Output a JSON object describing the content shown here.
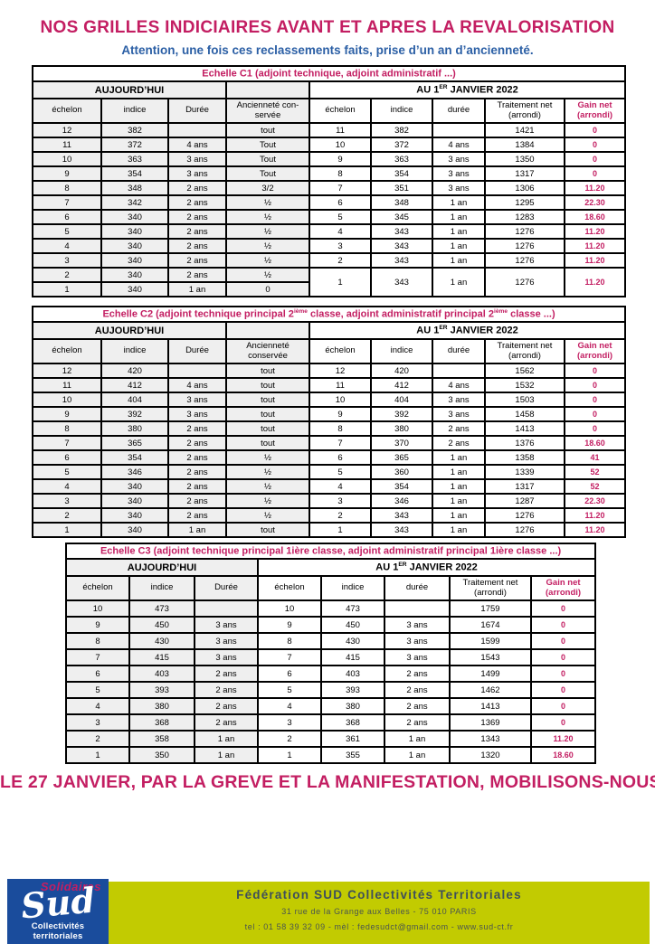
{
  "page": {
    "title": "NOS GRILLES INDICIAIRES AVANT ET APRES LA REVALORISATION",
    "subtitle": "Attention, une fois ces reclassements faits, prise d’un an d’ancienneté.",
    "headline": "LE 27 JANVIER, PAR LA GREVE ET LA MANIFESTATION, MOBILISONS-NOUS"
  },
  "colors": {
    "magenta": "#C31E62",
    "blue": "#2B5FA5",
    "olive": "#C2CB01",
    "logo-blue": "#1A4C9C",
    "grey-cell": "#EFEFEF"
  },
  "labels": {
    "today": "AUJOURD’HUI",
    "jan_prefix": "AU 1",
    "jan_sup": "ER",
    "jan_suffix": " JANVIER 2022"
  },
  "tables": [
    {
      "title": {
        "p1": "Echelle C1 (adjoint technique, adjoint administratif ...)",
        "s1": "",
        "p2": "",
        "s2": "",
        "p3": ""
      },
      "columns": [
        "échelon",
        "indice",
        "Durée",
        "Ancienneté con-servée",
        "échelon",
        "indice",
        "durée",
        "Traitement net (arrondi)",
        "Gain net (arrondi)"
      ],
      "rows": [
        {
          "left": [
            "12",
            "382",
            "",
            "tout"
          ],
          "right": [
            "11",
            "382",
            "",
            "1421",
            "0"
          ]
        },
        {
          "left": [
            "11",
            "372",
            "4 ans",
            "Tout"
          ],
          "right": [
            "10",
            "372",
            "4 ans",
            "1384",
            "0"
          ]
        },
        {
          "left": [
            "10",
            "363",
            "3 ans",
            "Tout"
          ],
          "right": [
            "9",
            "363",
            "3 ans",
            "1350",
            "0"
          ]
        },
        {
          "left": [
            "9",
            "354",
            "3 ans",
            "Tout"
          ],
          "right": [
            "8",
            "354",
            "3 ans",
            "1317",
            "0"
          ]
        },
        {
          "left": [
            "8",
            "348",
            "2 ans",
            "3/2"
          ],
          "right": [
            "7",
            "351",
            "3 ans",
            "1306",
            "11.20"
          ]
        },
        {
          "left": [
            "7",
            "342",
            "2 ans",
            "½"
          ],
          "right": [
            "6",
            "348",
            "1 an",
            "1295",
            "22.30"
          ]
        },
        {
          "left": [
            "6",
            "340",
            "2 ans",
            "½"
          ],
          "right": [
            "5",
            "345",
            "1 an",
            "1283",
            "18.60"
          ]
        },
        {
          "left": [
            "5",
            "340",
            "2 ans",
            "½"
          ],
          "right": [
            "4",
            "343",
            "1 an",
            "1276",
            "11.20"
          ]
        },
        {
          "left": [
            "4",
            "340",
            "2 ans",
            "½"
          ],
          "right": [
            "3",
            "343",
            "1 an",
            "1276",
            "11.20"
          ]
        },
        {
          "left": [
            "3",
            "340",
            "2 ans",
            "½"
          ],
          "right": [
            "2",
            "343",
            "1 an",
            "1276",
            "11.20"
          ]
        },
        {
          "left": [
            "2",
            "340",
            "2 ans",
            "½"
          ],
          "right": [
            "1",
            "343",
            "1 an",
            "1276",
            "11.20"
          ],
          "rowspan": 2
        },
        {
          "left": [
            "1",
            "340",
            "1 an",
            "0"
          ],
          "right": null
        }
      ]
    },
    {
      "title": {
        "p1": "Echelle C2 (adjoint technique principal 2",
        "s1": "ième",
        "p2": " classe, adjoint administratif principal 2",
        "s2": "ième",
        "p3": " classe ...)"
      },
      "columns": [
        "échelon",
        "indice",
        "Durée",
        "Ancienneté conservée",
        "échelon",
        "indice",
        "durée",
        "Traitement net (arrondi)",
        "Gain net (arrondi)"
      ],
      "rows": [
        {
          "left": [
            "12",
            "420",
            "",
            "tout"
          ],
          "right": [
            "12",
            "420",
            "",
            "1562",
            "0"
          ]
        },
        {
          "left": [
            "11",
            "412",
            "4 ans",
            "tout"
          ],
          "right": [
            "11",
            "412",
            "4 ans",
            "1532",
            "0"
          ]
        },
        {
          "left": [
            "10",
            "404",
            "3 ans",
            "tout"
          ],
          "right": [
            "10",
            "404",
            "3 ans",
            "1503",
            "0"
          ]
        },
        {
          "left": [
            "9",
            "392",
            "3 ans",
            "tout"
          ],
          "right": [
            "9",
            "392",
            "3 ans",
            "1458",
            "0"
          ]
        },
        {
          "left": [
            "8",
            "380",
            "2 ans",
            "tout"
          ],
          "right": [
            "8",
            "380",
            "2 ans",
            "1413",
            "0"
          ]
        },
        {
          "left": [
            "7",
            "365",
            "2 ans",
            "tout"
          ],
          "right": [
            "7",
            "370",
            "2 ans",
            "1376",
            "18.60"
          ]
        },
        {
          "left": [
            "6",
            "354",
            "2 ans",
            "½"
          ],
          "right": [
            "6",
            "365",
            "1 an",
            "1358",
            "41"
          ]
        },
        {
          "left": [
            "5",
            "346",
            "2 ans",
            "½"
          ],
          "right": [
            "5",
            "360",
            "1 an",
            "1339",
            "52"
          ]
        },
        {
          "left": [
            "4",
            "340",
            "2 ans",
            "½"
          ],
          "right": [
            "4",
            "354",
            "1 an",
            "1317",
            "52"
          ]
        },
        {
          "left": [
            "3",
            "340",
            "2 ans",
            "½"
          ],
          "right": [
            "3",
            "346",
            "1 an",
            "1287",
            "22.30"
          ]
        },
        {
          "left": [
            "2",
            "340",
            "2 ans",
            "½"
          ],
          "right": [
            "2",
            "343",
            "1 an",
            "1276",
            "11.20"
          ]
        },
        {
          "left": [
            "1",
            "340",
            "1 an",
            "tout"
          ],
          "right": [
            "1",
            "343",
            "1 an",
            "1276",
            "11.20"
          ]
        }
      ]
    },
    {
      "title": {
        "p1": "Echelle C3 (adjoint technique principal 1ière classe, adjoint administratif principal 1ière classe ...)",
        "s1": "",
        "p2": "",
        "s2": "",
        "p3": ""
      },
      "columns": [
        "échelon",
        "indice",
        "Durée",
        "échelon",
        "indice",
        "durée",
        "Traitement net (arrondi)",
        "Gain net (arrondi)"
      ],
      "rows": [
        {
          "left": [
            "10",
            "473",
            ""
          ],
          "right": [
            "10",
            "473",
            "",
            "1759",
            "0"
          ]
        },
        {
          "left": [
            "9",
            "450",
            "3 ans"
          ],
          "right": [
            "9",
            "450",
            "3 ans",
            "1674",
            "0"
          ]
        },
        {
          "left": [
            "8",
            "430",
            "3 ans"
          ],
          "right": [
            "8",
            "430",
            "3 ans",
            "1599",
            "0"
          ]
        },
        {
          "left": [
            "7",
            "415",
            "3 ans"
          ],
          "right": [
            "7",
            "415",
            "3 ans",
            "1543",
            "0"
          ]
        },
        {
          "left": [
            "6",
            "403",
            "2 ans"
          ],
          "right": [
            "6",
            "403",
            "2 ans",
            "1499",
            "0"
          ]
        },
        {
          "left": [
            "5",
            "393",
            "2 ans"
          ],
          "right": [
            "5",
            "393",
            "2 ans",
            "1462",
            "0"
          ]
        },
        {
          "left": [
            "4",
            "380",
            "2 ans"
          ],
          "right": [
            "4",
            "380",
            "2 ans",
            "1413",
            "0"
          ]
        },
        {
          "left": [
            "3",
            "368",
            "2 ans"
          ],
          "right": [
            "3",
            "368",
            "2 ans",
            "1369",
            "0"
          ]
        },
        {
          "left": [
            "2",
            "358",
            "1 an"
          ],
          "right": [
            "2",
            "361",
            "1 an",
            "1343",
            "11.20"
          ]
        },
        {
          "left": [
            "1",
            "350",
            "1 an"
          ],
          "right": [
            "1",
            "355",
            "1 an",
            "1320",
            "18.60"
          ]
        }
      ]
    }
  ],
  "footer": {
    "logo": {
      "solidaires": "Solidaires",
      "sud": "Sud",
      "caption": "Collectivités territoriales"
    },
    "org": "Fédération SUD Collectivités Territoriales",
    "address": "31 rue de la Grange aux Belles - 75 010 PARIS",
    "contact": "tel : 01 58 39 32 09 - mèl : fedesudct@gmail.com - www.sud-ct.fr"
  }
}
